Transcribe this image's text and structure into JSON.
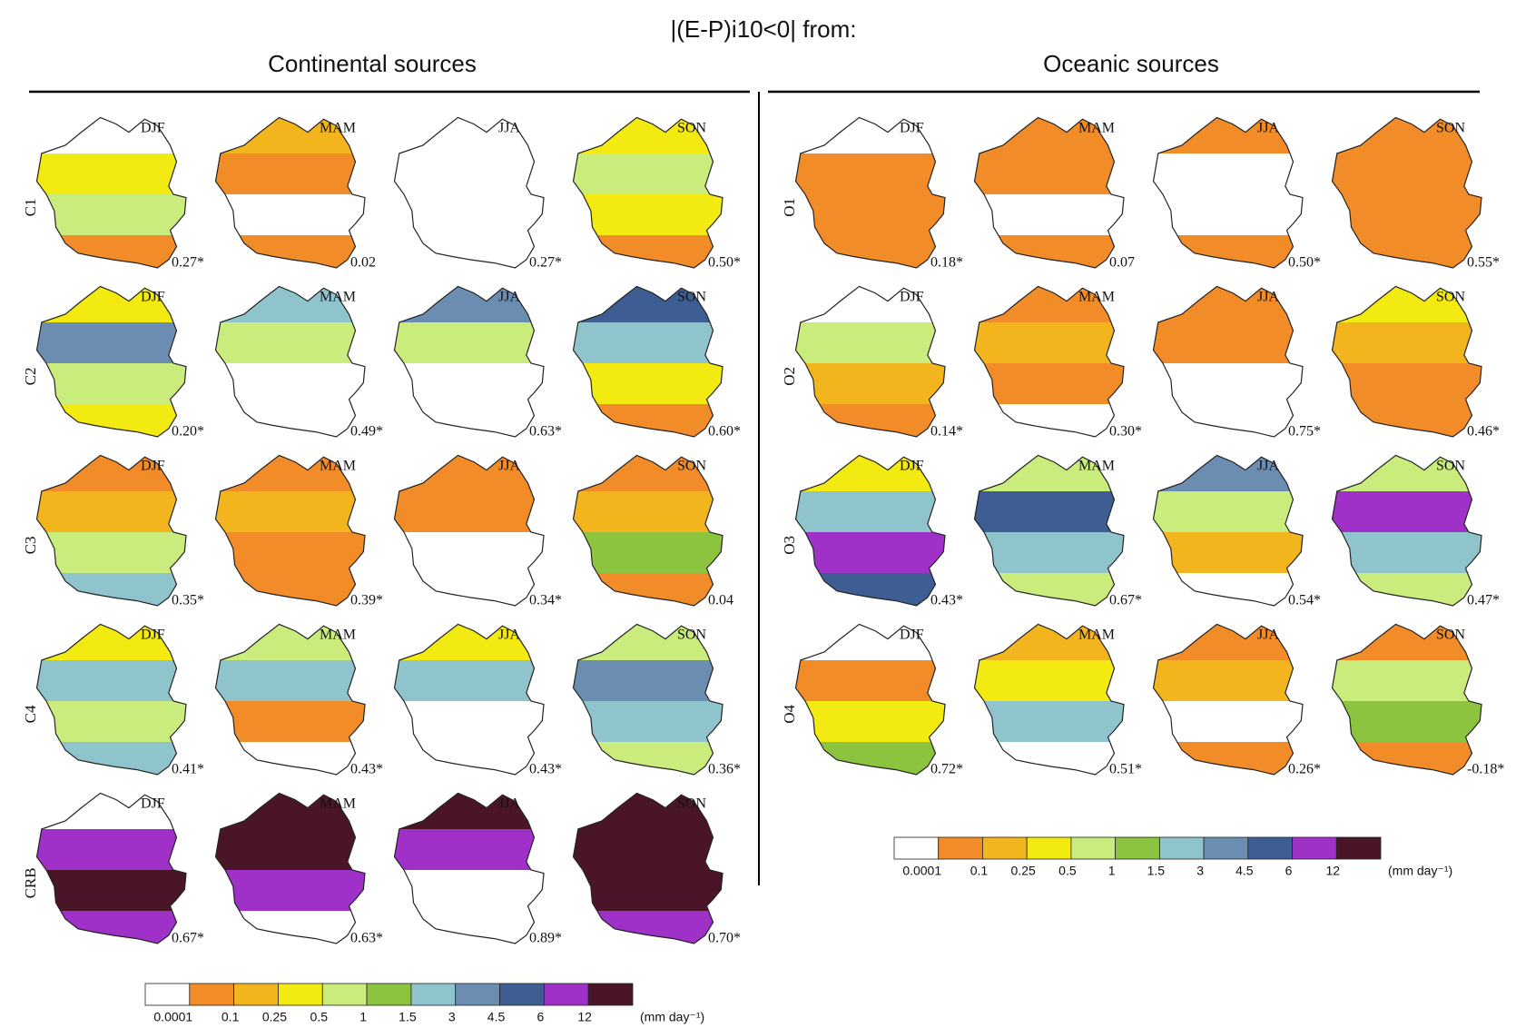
{
  "title": "|(E-P)i10<0| from:",
  "seasons": [
    "DJF",
    "MAM",
    "JJA",
    "SON"
  ],
  "groups": [
    {
      "title": "Continental sources",
      "rows": [
        {
          "label": "C1",
          "values": [
            "0.27*",
            "0.02",
            "0.27*",
            "0.50*"
          ]
        },
        {
          "label": "C2",
          "values": [
            "0.20*",
            "0.49*",
            "0.63*",
            "0.60*"
          ]
        },
        {
          "label": "C3",
          "values": [
            "0.35*",
            "0.39*",
            "0.34*",
            "0.04"
          ]
        },
        {
          "label": "C4",
          "values": [
            "0.41*",
            "0.43*",
            "0.43*",
            "0.36*"
          ]
        },
        {
          "label": "CRB",
          "values": [
            "0.67*",
            "0.63*",
            "0.89*",
            "0.70*"
          ]
        }
      ]
    },
    {
      "title": "Oceanic sources",
      "rows": [
        {
          "label": "O1",
          "values": [
            "0.18*",
            "0.07",
            "0.50*",
            "0.55*"
          ]
        },
        {
          "label": "O2",
          "values": [
            "0.14*",
            "0.30*",
            "0.75*",
            "0.46*"
          ]
        },
        {
          "label": "O3",
          "values": [
            "0.43*",
            "0.67*",
            "0.54*",
            "0.47*"
          ]
        },
        {
          "label": "O4",
          "values": [
            "0.72*",
            "0.51*",
            "0.26*",
            "-0.18*"
          ]
        }
      ]
    }
  ],
  "colorbar": {
    "ticks": [
      "0.0001",
      "0.1",
      "0.25",
      "0.5",
      "1",
      "1.5",
      "3",
      "4.5",
      "6",
      "12"
    ],
    "unit": "(mm day⁻¹)",
    "colors": [
      "#ffffff",
      "#f28c28",
      "#f2b51e",
      "#f3ea12",
      "#c9ec7c",
      "#8dc43f",
      "#8fc4cc",
      "#6b8db1",
      "#3e5e93",
      "#9f31c9",
      "#4b1529"
    ]
  }
}
